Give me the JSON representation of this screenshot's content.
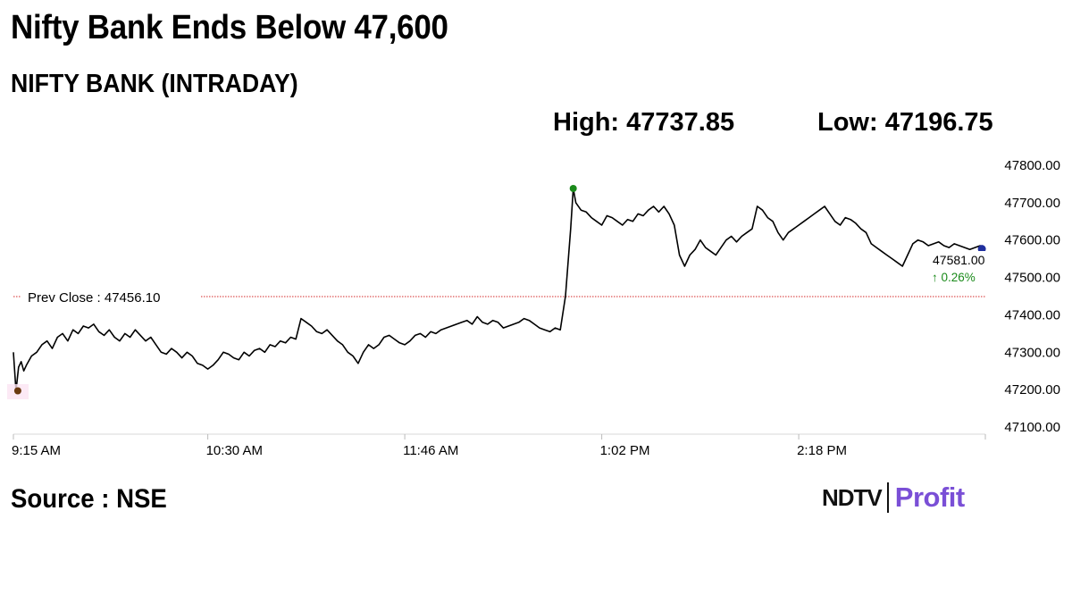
{
  "headline": "Nifty Bank Ends Below 47,600",
  "subtitle": "NIFTY BANK (INTRADAY)",
  "stats": {
    "high_label": "High: 47737.85",
    "low_label": "Low: 47196.75"
  },
  "source": "Source : NSE",
  "brand": {
    "part1": "NDTV",
    "part2": "Profit"
  },
  "colors": {
    "line": "#000000",
    "prev_close_line": "#d42a2a",
    "high_marker": "#1a8a1a",
    "low_marker": "#6b3a10",
    "last_marker": "#1f2f9e",
    "change_text": "#1a8a1a",
    "brand_profit": "#7a4fd6"
  },
  "chart_data": {
    "type": "line",
    "title": "NIFTY BANK (INTRADAY)",
    "xlabel": "",
    "ylabel": "",
    "x_ticks": [
      "9:15 AM",
      "10:30 AM",
      "11:46 AM",
      "1:02 PM",
      "2:18 PM"
    ],
    "x_tick_minutes": [
      555,
      630,
      706,
      782,
      858
    ],
    "x_range_minutes": [
      555,
      930
    ],
    "y_ticks": [
      "47800.00",
      "47700.00",
      "47600.00",
      "47500.00",
      "47400.00",
      "47300.00",
      "47200.00",
      "47100.00"
    ],
    "ylim": [
      47100,
      47800
    ],
    "grid": false,
    "prev_close": {
      "label": "Prev Close : 47456.10",
      "value": 47456.1
    },
    "high": {
      "value": 47737.85,
      "minute": 771
    },
    "low": {
      "value": 47196.75,
      "minute": 556
    },
    "last": {
      "label": "47581.00",
      "value": 47581.0,
      "change_label": "↑ 0.26%",
      "minute": 929
    },
    "series": [
      {
        "x_minutes": [
          555,
          556,
          557,
          558,
          559,
          560,
          562,
          564,
          566,
          568,
          570,
          572,
          574,
          576,
          578,
          580,
          582,
          584,
          586,
          588,
          590,
          592,
          594,
          596,
          598,
          600,
          602,
          604,
          606,
          608,
          610,
          612,
          614,
          616,
          618,
          620,
          622,
          624,
          626,
          628,
          630,
          632,
          634,
          636,
          638,
          640,
          642,
          644,
          646,
          648,
          650,
          652,
          654,
          656,
          658,
          660,
          662,
          664,
          666,
          668,
          670,
          672,
          674,
          676,
          678,
          680,
          682,
          684,
          686,
          688,
          690,
          692,
          694,
          696,
          698,
          700,
          702,
          704,
          706,
          708,
          710,
          712,
          714,
          716,
          718,
          720,
          722,
          724,
          726,
          728,
          730,
          732,
          734,
          736,
          738,
          740,
          742,
          744,
          746,
          748,
          750,
          752,
          754,
          756,
          758,
          760,
          762,
          764,
          766,
          768,
          770,
          771,
          772,
          774,
          776,
          778,
          780,
          782,
          784,
          786,
          788,
          790,
          792,
          794,
          796,
          798,
          800,
          802,
          804,
          806,
          808,
          810,
          812,
          814,
          816,
          818,
          820,
          822,
          824,
          826,
          828,
          830,
          832,
          834,
          836,
          838,
          840,
          842,
          844,
          846,
          848,
          850,
          852,
          854,
          856,
          858,
          860,
          862,
          864,
          866,
          868,
          870,
          872,
          874,
          876,
          878,
          880,
          882,
          884,
          886,
          888,
          890,
          892,
          894,
          896,
          898,
          900,
          902,
          904,
          906,
          908,
          910,
          912,
          914,
          916,
          918,
          920,
          922,
          924,
          926,
          928,
          929
        ],
        "values": [
          47300,
          47196.75,
          47260,
          47275,
          47250,
          47265,
          47290,
          47300,
          47320,
          47330,
          47310,
          47340,
          47350,
          47330,
          47360,
          47350,
          47370,
          47365,
          47375,
          47355,
          47345,
          47360,
          47340,
          47330,
          47350,
          47340,
          47360,
          47345,
          47330,
          47340,
          47320,
          47300,
          47295,
          47310,
          47300,
          47285,
          47300,
          47290,
          47270,
          47265,
          47255,
          47265,
          47280,
          47300,
          47295,
          47285,
          47280,
          47300,
          47290,
          47305,
          47310,
          47300,
          47320,
          47315,
          47330,
          47325,
          47340,
          47335,
          47390,
          47380,
          47370,
          47355,
          47350,
          47360,
          47345,
          47330,
          47320,
          47300,
          47290,
          47270,
          47300,
          47320,
          47310,
          47320,
          47340,
          47345,
          47335,
          47325,
          47320,
          47330,
          47345,
          47350,
          47340,
          47355,
          47350,
          47360,
          47365,
          47370,
          47375,
          47380,
          47385,
          47375,
          47395,
          47380,
          47375,
          47385,
          47380,
          47365,
          47370,
          47375,
          47380,
          47390,
          47385,
          47375,
          47365,
          47360,
          47355,
          47365,
          47360,
          47450,
          47630,
          47737.85,
          47700,
          47680,
          47675,
          47660,
          47650,
          47640,
          47665,
          47660,
          47650,
          47640,
          47655,
          47650,
          47670,
          47665,
          47680,
          47690,
          47675,
          47690,
          47670,
          47640,
          47560,
          47530,
          47560,
          47575,
          47600,
          47580,
          47570,
          47560,
          47580,
          47600,
          47610,
          47595,
          47610,
          47620,
          47630,
          47690,
          47680,
          47660,
          47650,
          47620,
          47600,
          47620,
          47630,
          47640,
          47650,
          47660,
          47670,
          47680,
          47690,
          47670,
          47650,
          47640,
          47660,
          47655,
          47645,
          47630,
          47620,
          47590,
          47580,
          47570,
          47560,
          47550,
          47540,
          47530,
          47560,
          47590,
          47600,
          47595,
          47585,
          47590,
          47595,
          47585,
          47580,
          47590,
          47585,
          47580,
          47575,
          47580,
          47585,
          47581
        ]
      }
    ]
  }
}
